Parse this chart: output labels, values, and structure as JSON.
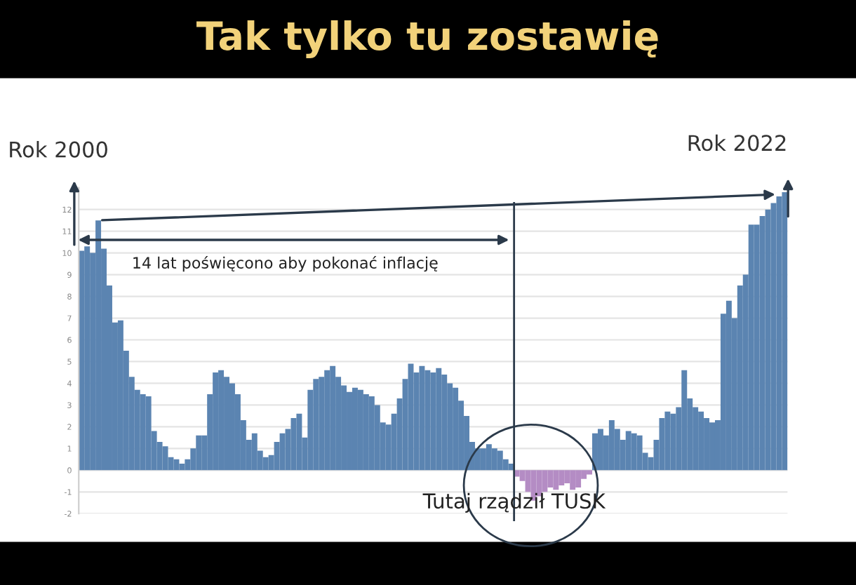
{
  "chart_data": {
    "type": "bar",
    "title": "Tak tylko tu zostawię",
    "categories": [
      null,
      null,
      null,
      null,
      null,
      null,
      null,
      null,
      null,
      null,
      null,
      null,
      null,
      null,
      null,
      null,
      null,
      null,
      null,
      null,
      null,
      null,
      null,
      null,
      null,
      null,
      null,
      null,
      null,
      null,
      null,
      null,
      null,
      null,
      null,
      null,
      null,
      null,
      null,
      null,
      null,
      null,
      null,
      null,
      null,
      null,
      null,
      null,
      null,
      null,
      null,
      null,
      null,
      null,
      null,
      null,
      null,
      null,
      null,
      null,
      null,
      null,
      null,
      null,
      null,
      null,
      null,
      null,
      null,
      null,
      null,
      null,
      null,
      null,
      null,
      null,
      null,
      null,
      null,
      null,
      null,
      null,
      null,
      null,
      null,
      null,
      null,
      null,
      null,
      null,
      null,
      null,
      null,
      null,
      null,
      null,
      null,
      null,
      null,
      null,
      null,
      null,
      null,
      null,
      null,
      null,
      null,
      null,
      null,
      null,
      null,
      null,
      null,
      null,
      null,
      null,
      null,
      null,
      null,
      null,
      null,
      null,
      null,
      null,
      null,
      null,
      null
    ],
    "values": [
      10.1,
      10.3,
      10.0,
      11.5,
      10.2,
      8.5,
      6.8,
      6.9,
      5.5,
      4.3,
      3.7,
      3.5,
      3.4,
      1.8,
      1.3,
      1.1,
      0.6,
      0.5,
      0.3,
      0.5,
      1.0,
      1.6,
      1.6,
      3.5,
      4.5,
      4.6,
      4.3,
      4.0,
      3.5,
      2.3,
      1.4,
      1.7,
      0.9,
      0.6,
      0.7,
      1.3,
      1.7,
      1.9,
      2.4,
      2.6,
      1.5,
      3.7,
      4.2,
      4.3,
      4.6,
      4.8,
      4.3,
      3.9,
      3.6,
      3.8,
      3.7,
      3.5,
      3.4,
      3.0,
      2.2,
      2.1,
      2.6,
      3.3,
      4.2,
      4.9,
      4.5,
      4.8,
      4.6,
      4.5,
      4.7,
      4.4,
      4.0,
      3.8,
      3.2,
      2.5,
      1.3,
      1.0,
      1.0,
      1.2,
      1.0,
      0.9,
      0.5,
      0.3,
      -0.3,
      -0.5,
      -1.0,
      -1.4,
      -1.2,
      -1.0,
      -0.8,
      -0.9,
      -0.7,
      -0.6,
      -0.9,
      -0.8,
      -0.4,
      -0.2,
      1.7,
      1.9,
      1.6,
      2.3,
      1.9,
      1.4,
      1.8,
      1.7,
      1.6,
      0.8,
      0.6,
      1.4,
      2.4,
      2.7,
      2.6,
      2.9,
      4.6,
      3.3,
      2.9,
      2.7,
      2.4,
      2.2,
      2.3,
      7.2,
      7.8,
      7.0,
      8.5,
      9.0,
      11.3,
      11.3,
      11.7,
      12.0,
      12.3,
      12.6,
      12.8
    ],
    "colors": [
      "#5b84b1",
      "#5b84b1",
      "#5b84b1",
      "#5b84b1",
      "#5b84b1",
      "#5b84b1",
      "#5b84b1",
      "#5b84b1",
      "#5b84b1",
      "#5b84b1",
      "#5b84b1",
      "#5b84b1",
      "#5b84b1",
      "#5b84b1",
      "#5b84b1",
      "#5b84b1",
      "#5b84b1",
      "#5b84b1",
      "#5b84b1",
      "#5b84b1",
      "#5b84b1",
      "#5b84b1",
      "#5b84b1",
      "#5b84b1",
      "#5b84b1",
      "#5b84b1",
      "#5b84b1",
      "#5b84b1",
      "#5b84b1",
      "#5b84b1",
      "#5b84b1",
      "#5b84b1",
      "#5b84b1",
      "#5b84b1",
      "#5b84b1",
      "#5b84b1",
      "#5b84b1",
      "#5b84b1",
      "#5b84b1",
      "#5b84b1",
      "#5b84b1",
      "#5b84b1",
      "#5b84b1",
      "#5b84b1",
      "#5b84b1",
      "#5b84b1",
      "#5b84b1",
      "#5b84b1",
      "#5b84b1",
      "#5b84b1",
      "#5b84b1",
      "#5b84b1",
      "#5b84b1",
      "#5b84b1",
      "#5b84b1",
      "#5b84b1",
      "#5b84b1",
      "#5b84b1",
      "#5b84b1",
      "#5b84b1",
      "#5b84b1",
      "#5b84b1",
      "#5b84b1",
      "#5b84b1",
      "#5b84b1",
      "#5b84b1",
      "#5b84b1",
      "#5b84b1",
      "#5b84b1",
      "#5b84b1",
      "#5b84b1",
      "#5b84b1",
      "#5b84b1",
      "#5b84b1",
      "#5b84b1",
      "#5b84b1",
      "#5b84b1",
      "#5b84b1",
      "#b48cc4",
      "#b48cc4",
      "#b48cc4",
      "#b48cc4",
      "#b48cc4",
      "#b48cc4",
      "#b48cc4",
      "#b48cc4",
      "#b48cc4",
      "#b48cc4",
      "#b48cc4",
      "#b48cc4",
      "#b48cc4",
      "#b48cc4",
      "#5b84b1",
      "#5b84b1",
      "#5b84b1",
      "#5b84b1",
      "#5b84b1",
      "#5b84b1",
      "#5b84b1",
      "#5b84b1",
      "#5b84b1",
      "#5b84b1",
      "#5b84b1",
      "#5b84b1",
      "#5b84b1",
      "#5b84b1",
      "#5b84b1",
      "#5b84b1",
      "#5b84b1",
      "#5b84b1",
      "#5b84b1",
      "#5b84b1",
      "#5b84b1",
      "#5b84b1",
      "#5b84b1",
      "#5b84b1",
      "#5b84b1",
      "#5b84b1",
      "#5b84b1",
      "#5b84b1",
      "#5b84b1",
      "#5b84b1",
      "#5b84b1",
      "#5b84b1",
      "#5b84b1",
      "#5b84b1",
      "#5b84b1"
    ],
    "ylim": [
      -2,
      13
    ],
    "yticks": [
      -2,
      -1,
      0,
      1,
      2,
      3,
      4,
      5,
      6,
      7,
      8,
      9,
      10,
      11,
      12
    ],
    "grid": "y",
    "tick_labels": "y",
    "annotations": [
      "Rok 2000",
      "Rok 2022",
      "14 lat poświęcono aby pokonać inflację",
      "Tutaj rządził TUSK"
    ]
  }
}
